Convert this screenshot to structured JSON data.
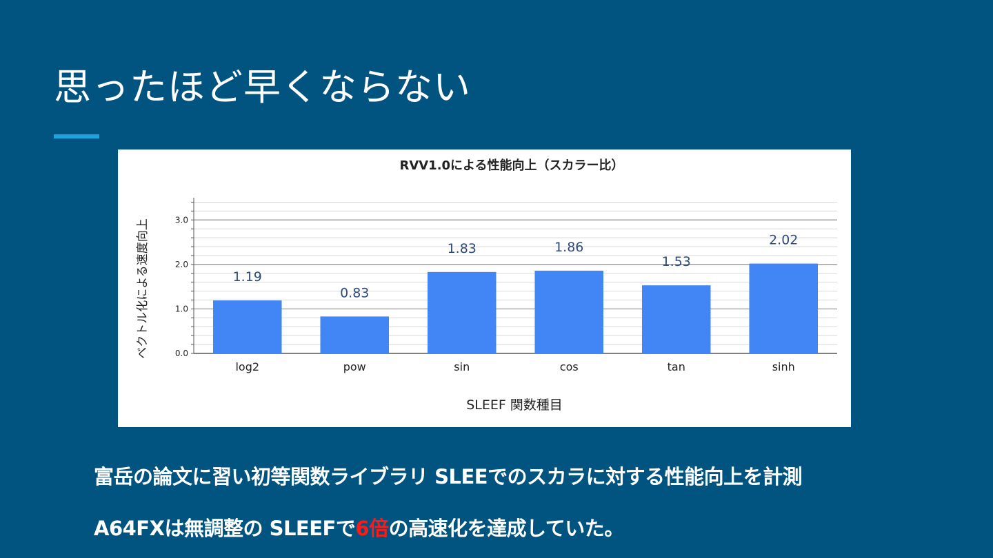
{
  "slide": {
    "title": "思ったほど早くならない",
    "captions": {
      "line1": "富岳の論文に習い初等関数ライブラリ  SLEEでのスカラに対する性能向上を計測",
      "line2_before": "A64FXは無調整の SLEEFで",
      "line2_highlight": "6倍",
      "line2_after": "の高速化を達成していた。"
    }
  },
  "colors": {
    "background": "#01547f",
    "accent": "#1fa2de",
    "bar": "#4285f4",
    "value_label": "#2f4a7d",
    "highlight": "#ff1a1a"
  },
  "chart_data": {
    "type": "bar",
    "title": "RVV1.0による性能向上（スカラー比）",
    "xlabel": "SLEEF 関数種目",
    "ylabel": "ベクトル化による速度向上",
    "categories": [
      "log2",
      "pow",
      "sin",
      "cos",
      "tan",
      "sinh"
    ],
    "values": [
      1.19,
      0.83,
      1.83,
      1.86,
      1.53,
      2.02
    ],
    "value_labels": [
      "1.19",
      "0.83",
      "1.83",
      "1.86",
      "1.53",
      "2.02"
    ],
    "ylim": [
      0,
      3.5
    ],
    "yticks": [
      0,
      1,
      2,
      3
    ],
    "ytick_labels": [
      "0.0",
      "1.0",
      "2.0",
      "3.0"
    ],
    "grid": true,
    "legend": "none"
  }
}
